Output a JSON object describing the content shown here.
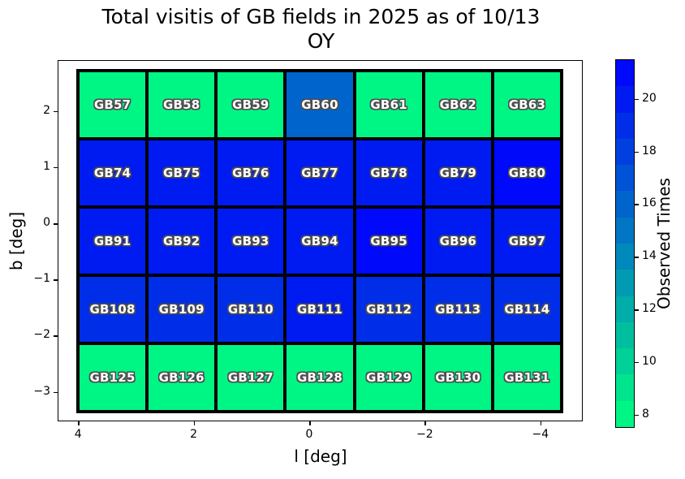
{
  "figure": {
    "title_line1": "Total visitis of GB fields in 2025 as of 10/13",
    "title_line2": "OY"
  },
  "chart_data": {
    "type": "heatmap",
    "title": "Total visitis of GB fields in 2025 as of 10/13 OY",
    "xlabel": "l [deg]",
    "ylabel": "b [deg]",
    "x_axis": {
      "ticks": [
        4,
        2,
        0,
        -2,
        -4
      ],
      "labels": [
        "4",
        "2",
        "0",
        "−2",
        "−4"
      ],
      "inverted": true,
      "xlim": [
        4.4,
        -4.8
      ]
    },
    "y_axis": {
      "ticks": [
        2,
        1,
        0,
        -1,
        -2,
        -3
      ],
      "labels": [
        "2",
        "1",
        "0",
        "−1",
        "−2",
        "−3"
      ],
      "ylim": [
        -3.5,
        2.9
      ]
    },
    "colorbar": {
      "label": "Observed Times",
      "ticks": [
        20,
        18,
        16,
        14,
        12,
        10,
        8
      ],
      "vmin": 7.5,
      "vmax": 21.5,
      "colormap": "winter_r",
      "low_color": "#00f684",
      "high_color": "#0009fa"
    },
    "grid_shape": {
      "cols": 7,
      "rows": 5
    },
    "rows": [
      {
        "labels": [
          "GB57",
          "GB58",
          "GB59",
          "GB60",
          "GB61",
          "GB62",
          "GB63"
        ],
        "values": [
          8,
          8,
          8,
          16,
          8,
          8,
          8
        ]
      },
      {
        "labels": [
          "GB74",
          "GB75",
          "GB76",
          "GB77",
          "GB78",
          "GB79",
          "GB80"
        ],
        "values": [
          20,
          20,
          20,
          20,
          20,
          20,
          21
        ]
      },
      {
        "labels": [
          "GB91",
          "GB92",
          "GB93",
          "GB94",
          "GB95",
          "GB96",
          "GB97"
        ],
        "values": [
          20,
          20,
          20,
          20,
          21,
          20,
          20
        ]
      },
      {
        "labels": [
          "GB108",
          "GB109",
          "GB110",
          "GB111",
          "GB112",
          "GB113",
          "GB114"
        ],
        "values": [
          19,
          19,
          19,
          20,
          19,
          19,
          19
        ]
      },
      {
        "labels": [
          "GB125",
          "GB126",
          "GB127",
          "GB128",
          "GB129",
          "GB130",
          "GB131"
        ],
        "values": [
          8,
          8,
          8,
          8,
          8,
          8,
          8
        ]
      }
    ]
  }
}
